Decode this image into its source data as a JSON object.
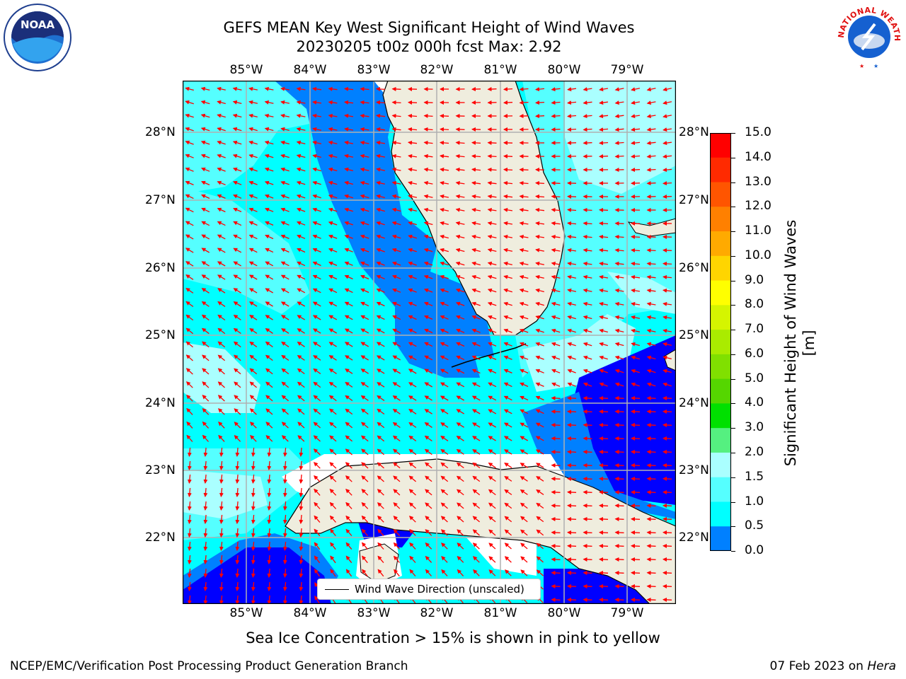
{
  "title": {
    "line1": "GEFS MEAN Key West Significant Height of Wind Waves",
    "line2": "20230205 t00z 000h fcst   Max: 2.92"
  },
  "map": {
    "lon_labels": [
      "85°W",
      "84°W",
      "83°W",
      "82°W",
      "81°W",
      "80°W",
      "79°W"
    ],
    "lat_labels": [
      "28°N",
      "27°N",
      "26°N",
      "25°N",
      "24°N",
      "23°N",
      "22°N"
    ],
    "legend_label": "Wind Wave Direction (unscaled)",
    "arrow_color": "#ff0000",
    "land_color": "#efedde",
    "grid_color": "#b0b0b0"
  },
  "colorbar": {
    "label": "Significant Height of Wind Waves [m]",
    "ticks": [
      "15.0",
      "14.0",
      "13.0",
      "12.0",
      "11.0",
      "10.0",
      "9.0",
      "8.0",
      "7.0",
      "6.0",
      "5.0",
      "4.0",
      "3.0",
      "2.0",
      "1.5",
      "1.0",
      "0.5",
      "0.0"
    ],
    "colors_top_to_bottom": [
      "#ff0000",
      "#ff2a00",
      "#ff5500",
      "#ff8000",
      "#ffaa00",
      "#ffd500",
      "#ffff00",
      "#d5f500",
      "#aaeb00",
      "#80e000",
      "#55d600",
      "#00e000",
      "#55f080",
      "#aaffff",
      "#55ffff",
      "#00ffff",
      "#0080ff",
      "#0000ff"
    ]
  },
  "footer": {
    "note": "Sea Ice Concentration > 15% is shown in pink to yellow",
    "credit": "NCEP/EMC/Verification Post Processing Product Generation Branch",
    "date": "07 Feb 2023",
    "on": "on",
    "machine": "Hera"
  },
  "logos": {
    "left": "noaa-logo",
    "right": "nws-logo",
    "left_text": "NOAA",
    "right_text": "NATIONAL WEATHER SERVICE"
  }
}
